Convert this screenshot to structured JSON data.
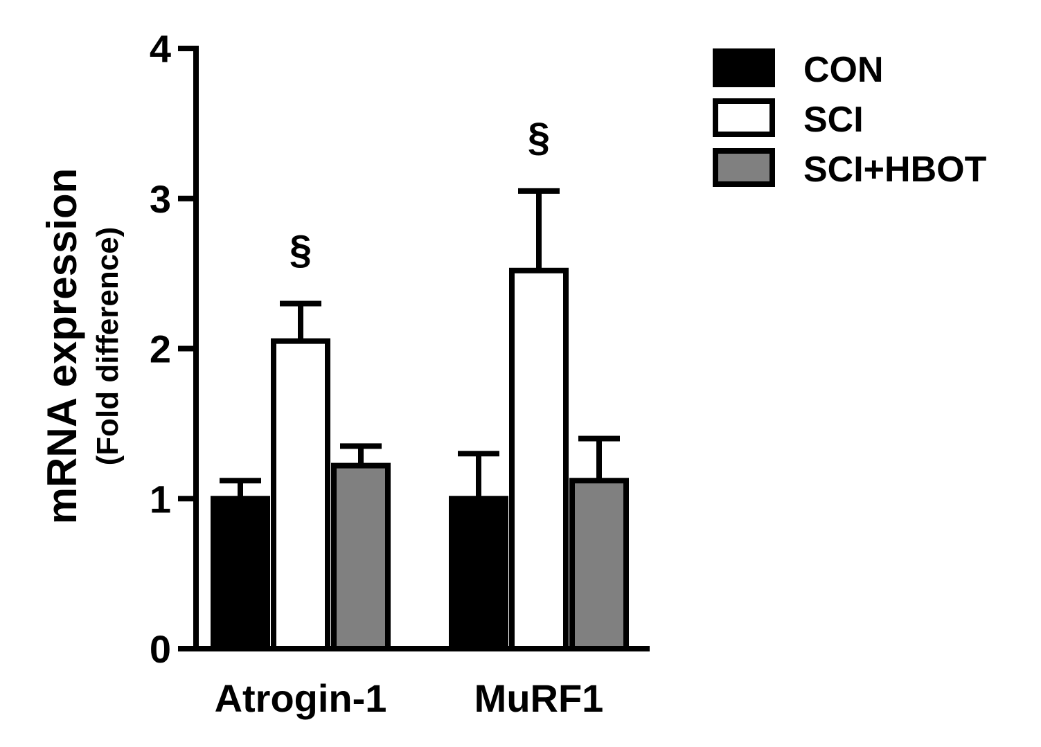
{
  "chart_data": {
    "type": "bar",
    "categories": [
      "Atrogin-1",
      "MuRF1"
    ],
    "series": [
      {
        "name": "CON",
        "values": [
          1.0,
          1.0
        ],
        "errors": [
          0.12,
          0.3
        ],
        "color": "#000000"
      },
      {
        "name": "SCI",
        "values": [
          2.05,
          2.52
        ],
        "errors": [
          0.25,
          0.53
        ],
        "color": "#ffffff"
      },
      {
        "name": "SCI+HBOT",
        "values": [
          1.22,
          1.12
        ],
        "errors": [
          0.13,
          0.28
        ],
        "color": "#808080"
      }
    ],
    "ylabel": "mRNA expression",
    "ylabel_sub": "(Fold difference)",
    "ylim": [
      0,
      4
    ],
    "yticks": [
      0,
      1,
      2,
      3,
      4
    ],
    "annotations": [
      {
        "category": "Atrogin-1",
        "series": "SCI",
        "text": "§"
      },
      {
        "category": "MuRF1",
        "series": "SCI",
        "text": "§"
      }
    ],
    "legend_position": "top-right",
    "grid": false
  }
}
